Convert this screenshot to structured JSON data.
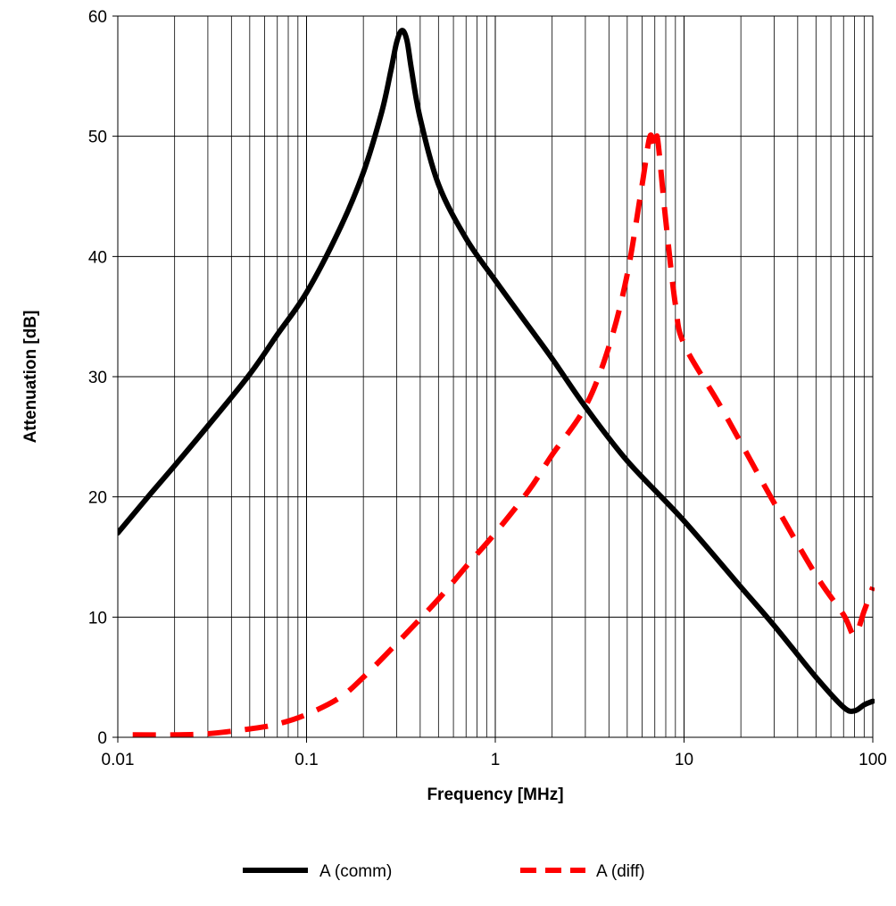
{
  "chart_data": {
    "type": "line",
    "xlabel": "Frequency [MHz]",
    "ylabel": "Attenuation [dB]",
    "x_scale": "log",
    "xlim": [
      0.01,
      100
    ],
    "ylim": [
      0,
      60
    ],
    "x_ticks": [
      {
        "value": 0.01,
        "label": "0.01"
      },
      {
        "value": 0.1,
        "label": "0.1"
      },
      {
        "value": 1,
        "label": "1"
      },
      {
        "value": 10,
        "label": "10"
      },
      {
        "value": 100,
        "label": "100"
      }
    ],
    "y_ticks": [
      {
        "value": 0,
        "label": "0"
      },
      {
        "value": 10,
        "label": "10"
      },
      {
        "value": 20,
        "label": "20"
      },
      {
        "value": 30,
        "label": "30"
      },
      {
        "value": 40,
        "label": "40"
      },
      {
        "value": 50,
        "label": "50"
      },
      {
        "value": 60,
        "label": "60"
      }
    ],
    "grid": true,
    "legend_position": "bottom",
    "series": [
      {
        "name": "A (comm)",
        "color": "#000000",
        "style": "solid",
        "points": [
          [
            0.01,
            17
          ],
          [
            0.015,
            20.3
          ],
          [
            0.02,
            22.6
          ],
          [
            0.03,
            25.9
          ],
          [
            0.05,
            30.2
          ],
          [
            0.07,
            33.5
          ],
          [
            0.1,
            37.0
          ],
          [
            0.15,
            42.3
          ],
          [
            0.2,
            47.0
          ],
          [
            0.25,
            52.0
          ],
          [
            0.28,
            55.5
          ],
          [
            0.3,
            57.8
          ],
          [
            0.32,
            58.8
          ],
          [
            0.34,
            58.0
          ],
          [
            0.36,
            55.5
          ],
          [
            0.4,
            51.5
          ],
          [
            0.5,
            46.0
          ],
          [
            0.7,
            41.5
          ],
          [
            1,
            38.0
          ],
          [
            1.5,
            34.2
          ],
          [
            2,
            31.5
          ],
          [
            3,
            27.5
          ],
          [
            5,
            23.0
          ],
          [
            10,
            18.0
          ],
          [
            20,
            12.5
          ],
          [
            30,
            9.3
          ],
          [
            50,
            5.0
          ],
          [
            70,
            2.5
          ],
          [
            80,
            2.2
          ],
          [
            90,
            2.7
          ],
          [
            100,
            3.0
          ]
        ]
      },
      {
        "name": "A (diff)",
        "color": "#ff0000",
        "style": "dashed",
        "points": [
          [
            0.012,
            0.2
          ],
          [
            0.02,
            0.2
          ],
          [
            0.03,
            0.3
          ],
          [
            0.05,
            0.7
          ],
          [
            0.07,
            1.1
          ],
          [
            0.1,
            1.9
          ],
          [
            0.15,
            3.3
          ],
          [
            0.2,
            5.0
          ],
          [
            0.3,
            7.8
          ],
          [
            0.5,
            11.5
          ],
          [
            0.7,
            14.2
          ],
          [
            1,
            17.0
          ],
          [
            1.5,
            20.5
          ],
          [
            2,
            23.5
          ],
          [
            3,
            27.5
          ],
          [
            4,
            32.5
          ],
          [
            5,
            38.5
          ],
          [
            6,
            46.0
          ],
          [
            6.6,
            50.0
          ],
          [
            7,
            49.0
          ],
          [
            7.2,
            50.0
          ],
          [
            7.5,
            47.5
          ],
          [
            8,
            43.0
          ],
          [
            9,
            36.0
          ],
          [
            10,
            32.7
          ],
          [
            15,
            28.0
          ],
          [
            20,
            24.5
          ],
          [
            30,
            19.5
          ],
          [
            50,
            13.5
          ],
          [
            70,
            10.2
          ],
          [
            80,
            8.5
          ],
          [
            90,
            10.5
          ],
          [
            100,
            12.5
          ]
        ]
      }
    ]
  }
}
